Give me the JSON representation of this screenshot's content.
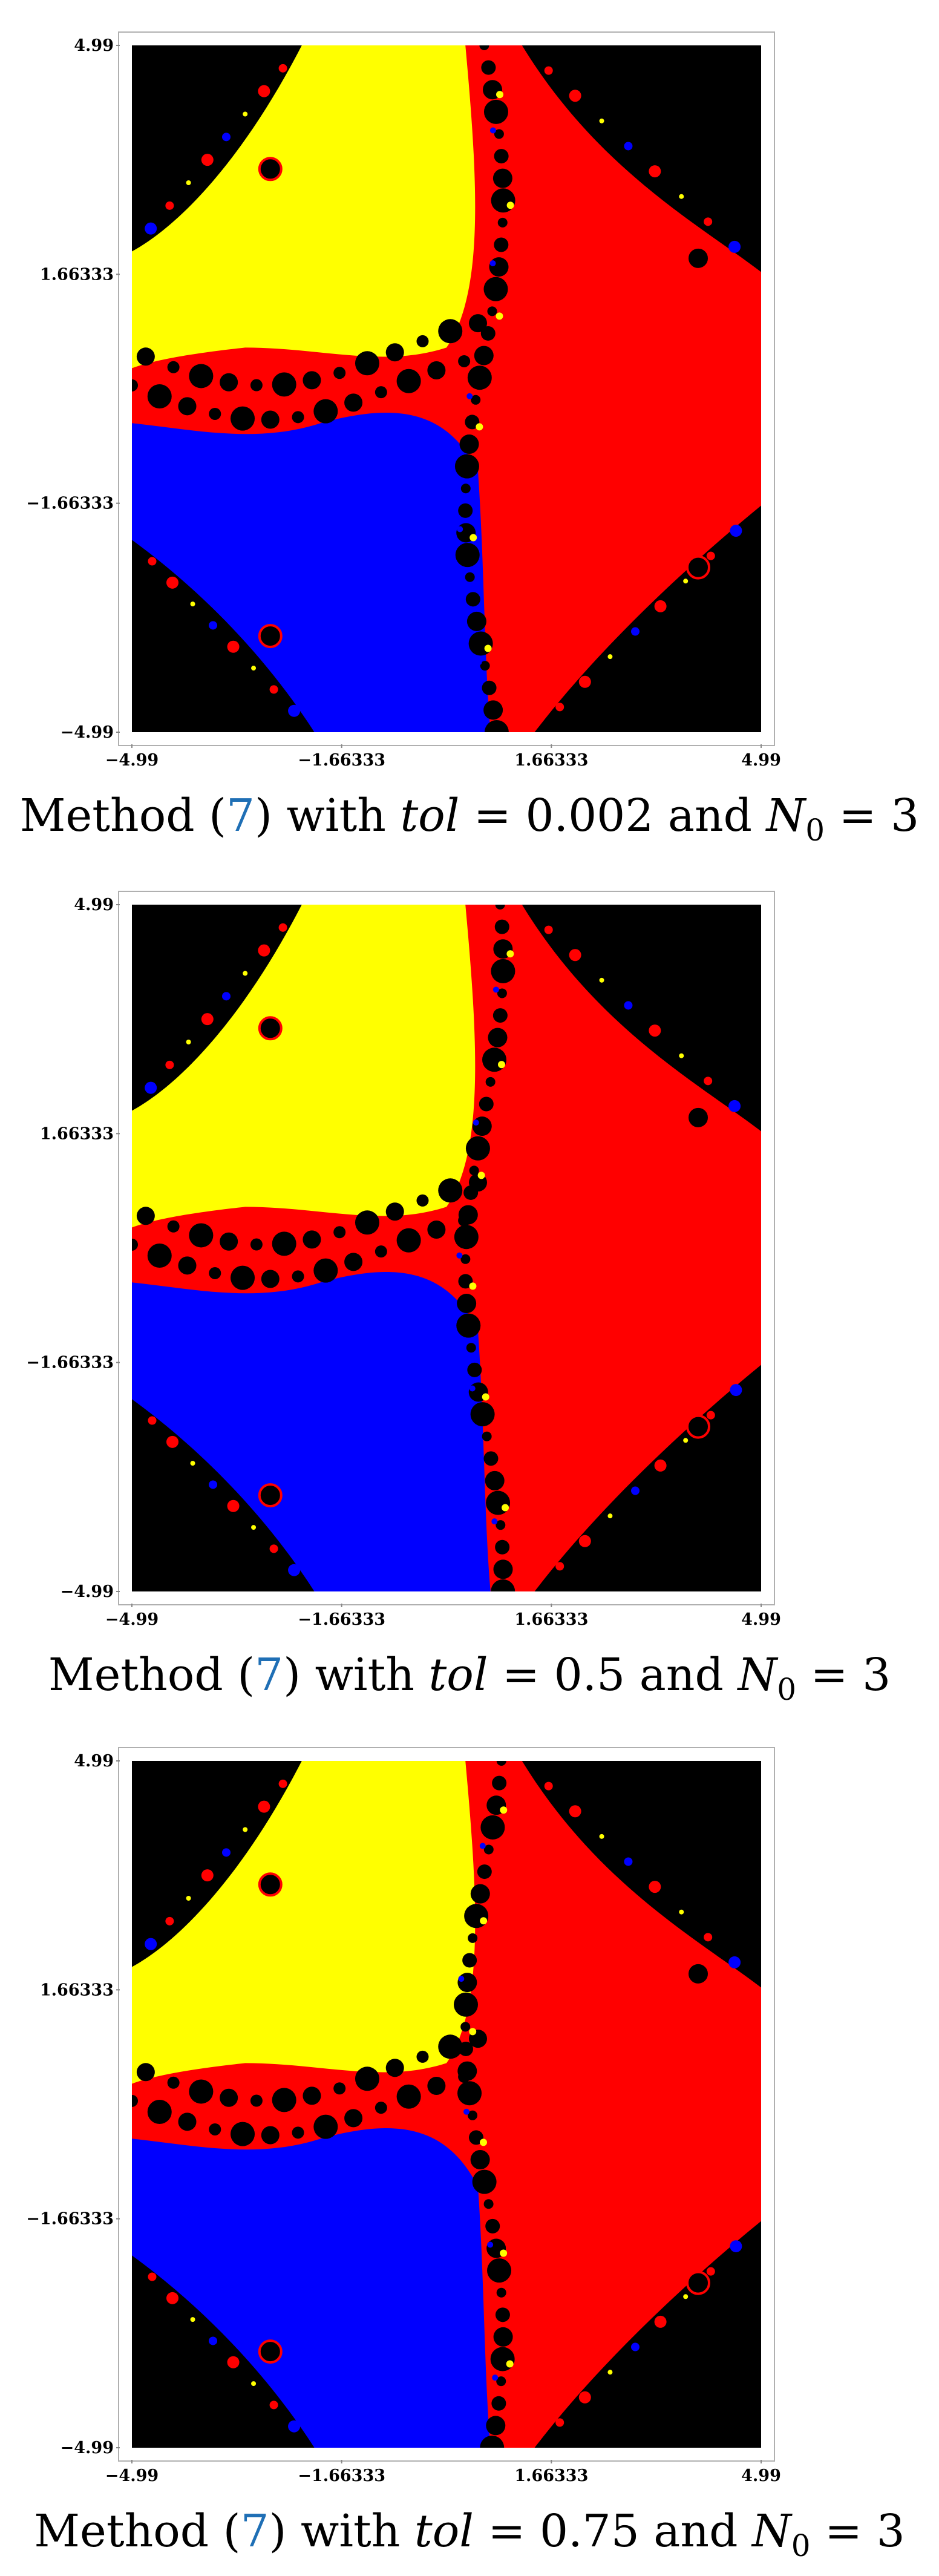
{
  "charts": [
    {
      "caption": {
        "prefix": "Method (",
        "ref": "7",
        "mid": ") with ",
        "tol_sym": "tol",
        "eq1": " = ",
        "tol": "0.002",
        "and": " and ",
        "n_sym": "N",
        "n_sub": "0",
        "eq2": " = ",
        "n": "3"
      },
      "chart_data": {
        "type": "heatmap",
        "xlim": [
          -4.99,
          4.99
        ],
        "ylim": [
          -4.99,
          4.99
        ],
        "x_ticks": [
          "−4.99",
          "−1.66333",
          "1.66333",
          "4.99"
        ],
        "y_ticks": [
          "4.99",
          "1.66333",
          "−1.66333",
          "−4.99"
        ],
        "basin_colors": [
          "#ffff00",
          "#ff0000",
          "#0000ff",
          "#000000"
        ],
        "variant": 0
      }
    },
    {
      "caption": {
        "prefix": "Method (",
        "ref": "7",
        "mid": ") with ",
        "tol_sym": "tol",
        "eq1": " = ",
        "tol": "0.5",
        "and": " and ",
        "n_sym": "N",
        "n_sub": "0",
        "eq2": " = ",
        "n": "3"
      },
      "chart_data": {
        "type": "heatmap",
        "xlim": [
          -4.99,
          4.99
        ],
        "ylim": [
          -4.99,
          4.99
        ],
        "x_ticks": [
          "−4.99",
          "−1.66333",
          "1.66333",
          "4.99"
        ],
        "y_ticks": [
          "4.99",
          "1.66333",
          "−1.66333",
          "−4.99"
        ],
        "basin_colors": [
          "#ffff00",
          "#ff0000",
          "#0000ff",
          "#000000"
        ],
        "variant": 1
      }
    },
    {
      "caption": {
        "prefix": "Method (",
        "ref": "7",
        "mid": ") with ",
        "tol_sym": "tol",
        "eq1": " = ",
        "tol": "0.75",
        "and": " and ",
        "n_sym": "N",
        "n_sub": "0",
        "eq2": " = ",
        "n": "3"
      },
      "chart_data": {
        "type": "heatmap",
        "xlim": [
          -4.99,
          4.99
        ],
        "ylim": [
          -4.99,
          4.99
        ],
        "x_ticks": [
          "−4.99",
          "−1.66333",
          "1.66333",
          "4.99"
        ],
        "y_ticks": [
          "4.99",
          "1.66333",
          "−1.66333",
          "−4.99"
        ],
        "basin_colors": [
          "#ffff00",
          "#ff0000",
          "#0000ff",
          "#000000"
        ],
        "variant": 2
      }
    }
  ]
}
